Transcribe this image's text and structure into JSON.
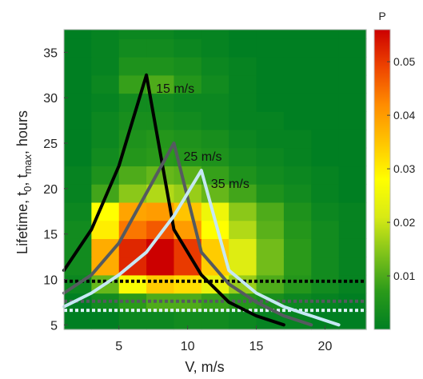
{
  "chart_data": {
    "type": "heatmap",
    "xlabel": "V, m/s",
    "ylabel": {
      "main": "Lifetime, t",
      "sub0": "0",
      "mid": ", t",
      "subMax": "max",
      "tail": ", hours"
    },
    "xlim": [
      1,
      23
    ],
    "ylim": [
      4.5,
      37.5
    ],
    "x_ticks": [
      5,
      10,
      15,
      20
    ],
    "y_ticks": [
      5,
      10,
      15,
      20,
      25,
      30,
      35
    ],
    "heatmap": {
      "x_edges": [
        1,
        3,
        5,
        7,
        9,
        11,
        13,
        15,
        17,
        19,
        21,
        23
      ],
      "y_edges": [
        4.5,
        6.5,
        8.5,
        10.5,
        12.5,
        14.5,
        16.5,
        18.5,
        20.5,
        22.5,
        24.5,
        26.5,
        28.5,
        30.5,
        32.5,
        34.5,
        36.5,
        37.5
      ],
      "values": [
        [
          0.0,
          0.0,
          0.002,
          0.002,
          0.003,
          0.003,
          0.002,
          0.001,
          0.001,
          0.0,
          0.0
        ],
        [
          0.0,
          0.003,
          0.007,
          0.01,
          0.01,
          0.008,
          0.006,
          0.004,
          0.002,
          0.001,
          0.0
        ],
        [
          0.002,
          0.012,
          0.027,
          0.034,
          0.032,
          0.024,
          0.016,
          0.01,
          0.006,
          0.003,
          0.001
        ],
        [
          0.003,
          0.038,
          0.052,
          0.056,
          0.05,
          0.034,
          0.022,
          0.013,
          0.007,
          0.003,
          0.001
        ],
        [
          0.003,
          0.038,
          0.052,
          0.056,
          0.05,
          0.034,
          0.022,
          0.013,
          0.007,
          0.003,
          0.001
        ],
        [
          0.003,
          0.03,
          0.044,
          0.047,
          0.04,
          0.028,
          0.018,
          0.011,
          0.006,
          0.003,
          0.001
        ],
        [
          0.002,
          0.028,
          0.039,
          0.04,
          0.035,
          0.025,
          0.015,
          0.01,
          0.005,
          0.002,
          0.001
        ],
        [
          0.001,
          0.009,
          0.015,
          0.018,
          0.016,
          0.012,
          0.009,
          0.005,
          0.003,
          0.001,
          0.0
        ],
        [
          0.001,
          0.005,
          0.01,
          0.012,
          0.011,
          0.008,
          0.005,
          0.003,
          0.002,
          0.001,
          0.0
        ],
        [
          0.0,
          0.003,
          0.006,
          0.007,
          0.006,
          0.005,
          0.003,
          0.002,
          0.001,
          0.0,
          0.0
        ],
        [
          0.0,
          0.002,
          0.005,
          0.006,
          0.005,
          0.004,
          0.002,
          0.001,
          0.001,
          0.0,
          0.0
        ],
        [
          0.0,
          0.002,
          0.004,
          0.004,
          0.003,
          0.002,
          0.001,
          0.001,
          0.0,
          0.0,
          0.0
        ],
        [
          0.0,
          0.001,
          0.003,
          0.003,
          0.002,
          0.002,
          0.001,
          0.0,
          0.0,
          0.0,
          0.0
        ],
        [
          0.0,
          0.002,
          0.008,
          0.01,
          0.006,
          0.003,
          0.001,
          0.0,
          0.0,
          0.0,
          0.0
        ],
        [
          0.0,
          0.001,
          0.005,
          0.005,
          0.004,
          0.002,
          0.001,
          0.0,
          0.0,
          0.0,
          0.0
        ],
        [
          0.0,
          0.001,
          0.003,
          0.003,
          0.002,
          0.001,
          0.0,
          0.0,
          0.0,
          0.0,
          0.0
        ],
        [
          0.0,
          0.001,
          0.002,
          0.002,
          0.001,
          0.001,
          0.0,
          0.0,
          0.0,
          0.0,
          0.0
        ]
      ]
    },
    "colorbar": {
      "title": "P",
      "range": [
        0,
        0.056
      ],
      "ticks": [
        0.01,
        0.02,
        0.03,
        0.04,
        0.05
      ],
      "tick_labels": [
        "0.01",
        "0.02",
        "0.03",
        "0.04",
        "0.05"
      ],
      "colors": [
        "#007f22",
        "#2a9a1a",
        "#7ec21a",
        "#d8ea15",
        "#ffff00",
        "#ffc400",
        "#ff8c00",
        "#ee4400",
        "#cc0000"
      ]
    },
    "series": [
      {
        "name": "15 m/s",
        "color": "#000000",
        "x": [
          1,
          3,
          5,
          7,
          9,
          11,
          13,
          15,
          17
        ],
        "y": [
          11,
          15.5,
          22.5,
          32.5,
          15.5,
          10.5,
          7.5,
          6,
          5
        ]
      },
      {
        "name": "25 m/s",
        "color": "#555a5f",
        "x": [
          1,
          3,
          5,
          7,
          9,
          11,
          13,
          15,
          17,
          19
        ],
        "y": [
          8.5,
          10.5,
          14,
          19.5,
          25,
          13,
          9.5,
          7.5,
          6,
          5
        ]
      },
      {
        "name": "35 m/s",
        "color": "#c6e8f4",
        "x": [
          1,
          3,
          5,
          7,
          9,
          11,
          13,
          15,
          17,
          19,
          21
        ],
        "y": [
          7,
          8.5,
          10.5,
          13,
          17,
          22,
          11,
          8.5,
          7,
          6,
          5
        ]
      }
    ],
    "hlines": [
      {
        "y": 9.8,
        "color": "#000000"
      },
      {
        "y": 7.6,
        "color": "#555a5f"
      },
      {
        "y": 6.6,
        "color": "#ddf2fa"
      }
    ]
  }
}
